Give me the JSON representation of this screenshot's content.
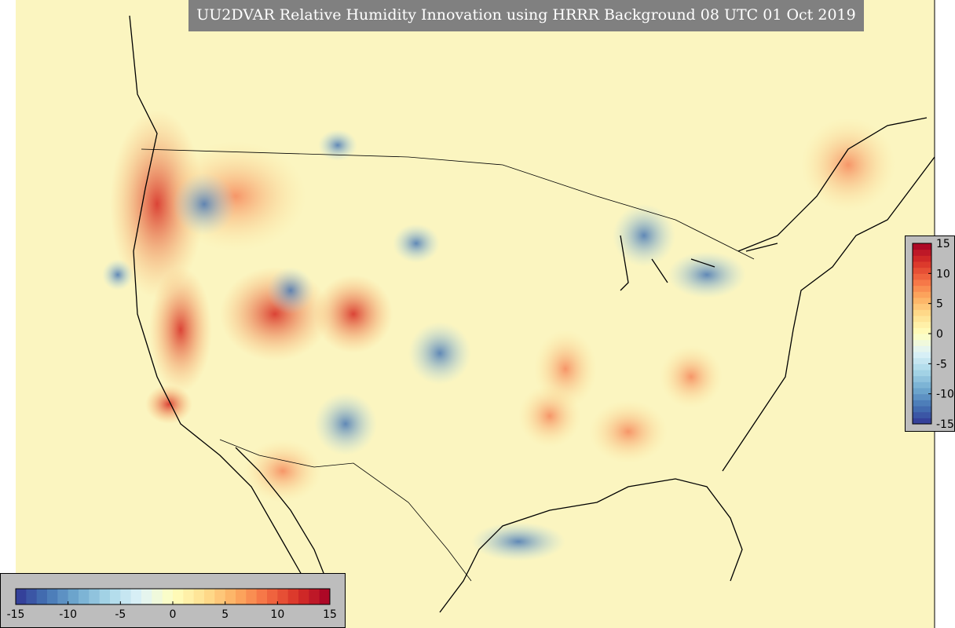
{
  "header": {
    "title": "UU2DVAR Relative Humidity Innovation using HRRR Background 08 UTC 01 Oct 2019"
  },
  "colormap": [
    "#313695",
    "#4575b4",
    "#74add1",
    "#abd9e9",
    "#e0f3f8",
    "#ffffbf",
    "#fee090",
    "#fdae61",
    "#f46d43",
    "#d73027",
    "#a50026"
  ],
  "colorbars": [
    {
      "orientation": "horizontal",
      "range": [
        -15,
        15
      ],
      "bins": 30,
      "ticks": [
        -15,
        -10,
        -5,
        0,
        5,
        10,
        15
      ]
    },
    {
      "orientation": "vertical",
      "range": [
        -15,
        15
      ],
      "bins": 30,
      "ticks": [
        15,
        10,
        5,
        0,
        -5,
        -10,
        -15
      ]
    }
  ]
}
